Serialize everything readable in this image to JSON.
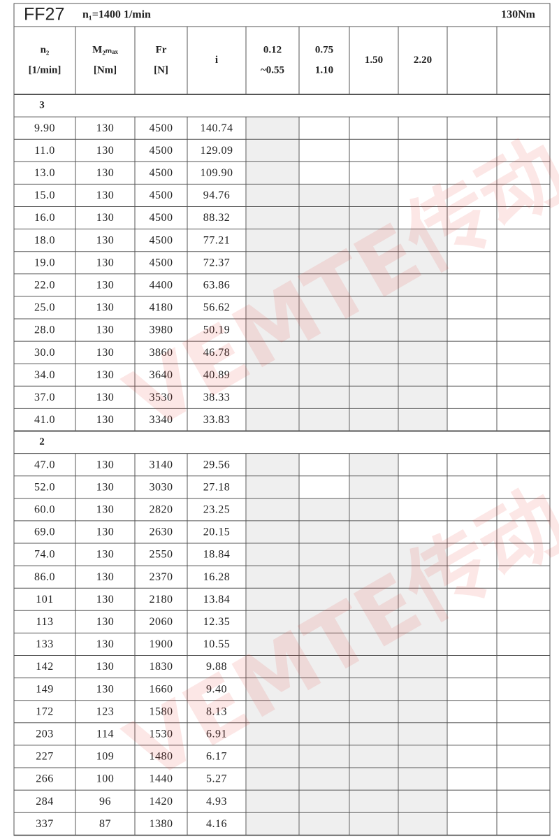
{
  "title": "FF27",
  "speed": "n₁=1400 1/min",
  "torque": "130Nm",
  "watermark": "VEMTE传动",
  "header": [
    [
      "n₂",
      "[1/min]"
    ],
    [
      "M₂ₘₐₓ",
      "[Nm]"
    ],
    [
      "Fr",
      "[N]"
    ],
    [
      "i"
    ],
    [
      "0.12",
      "~0.55"
    ],
    [
      "0.75",
      "1.10"
    ],
    [
      "1.50"
    ],
    [
      "2.20"
    ],
    [],
    []
  ],
  "groups": [
    {
      "label": "3",
      "rows": [
        [
          "9.90",
          "130",
          "4500",
          "140.74"
        ],
        [
          "11.0",
          "130",
          "4500",
          "129.09"
        ],
        [
          "13.0",
          "130",
          "4500",
          "109.90"
        ],
        [
          "15.0",
          "130",
          "4500",
          "94.76"
        ],
        [
          "16.0",
          "130",
          "4500",
          "88.32"
        ],
        [
          "18.0",
          "130",
          "4500",
          "77.21"
        ],
        [
          "19.0",
          "130",
          "4500",
          "72.37"
        ],
        [
          "22.0",
          "130",
          "4400",
          "63.86"
        ],
        [
          "25.0",
          "130",
          "4180",
          "56.62"
        ],
        [
          "28.0",
          "130",
          "3980",
          "50.19"
        ],
        [
          "30.0",
          "130",
          "3860",
          "46.78"
        ],
        [
          "34.0",
          "130",
          "3640",
          "40.89"
        ],
        [
          "37.0",
          "130",
          "3530",
          "38.33"
        ],
        [
          "41.0",
          "130",
          "3340",
          "33.83"
        ]
      ]
    },
    {
      "label": "2",
      "rows": [
        [
          "47.0",
          "130",
          "3140",
          "29.56"
        ],
        [
          "52.0",
          "130",
          "3030",
          "27.18"
        ],
        [
          "60.0",
          "130",
          "2820",
          "23.25"
        ],
        [
          "69.0",
          "130",
          "2630",
          "20.15"
        ],
        [
          "74.0",
          "130",
          "2550",
          "18.84"
        ],
        [
          "86.0",
          "130",
          "2370",
          "16.28"
        ],
        [
          "101",
          "130",
          "2180",
          "13.84"
        ],
        [
          "113",
          "130",
          "2060",
          "12.35"
        ],
        [
          "133",
          "130",
          "1900",
          "10.55"
        ],
        [
          "142",
          "130",
          "1830",
          "9.88"
        ],
        [
          "149",
          "130",
          "1660",
          "9.40"
        ],
        [
          "172",
          "123",
          "1580",
          "8.13"
        ],
        [
          "203",
          "114",
          "1530",
          "6.91"
        ],
        [
          "227",
          "109",
          "1480",
          "6.17"
        ],
        [
          "266",
          "100",
          "1440",
          "5.27"
        ],
        [
          "284",
          "96",
          "1420",
          "4.93"
        ],
        [
          "337",
          "87",
          "1380",
          "4.16"
        ]
      ]
    }
  ]
}
